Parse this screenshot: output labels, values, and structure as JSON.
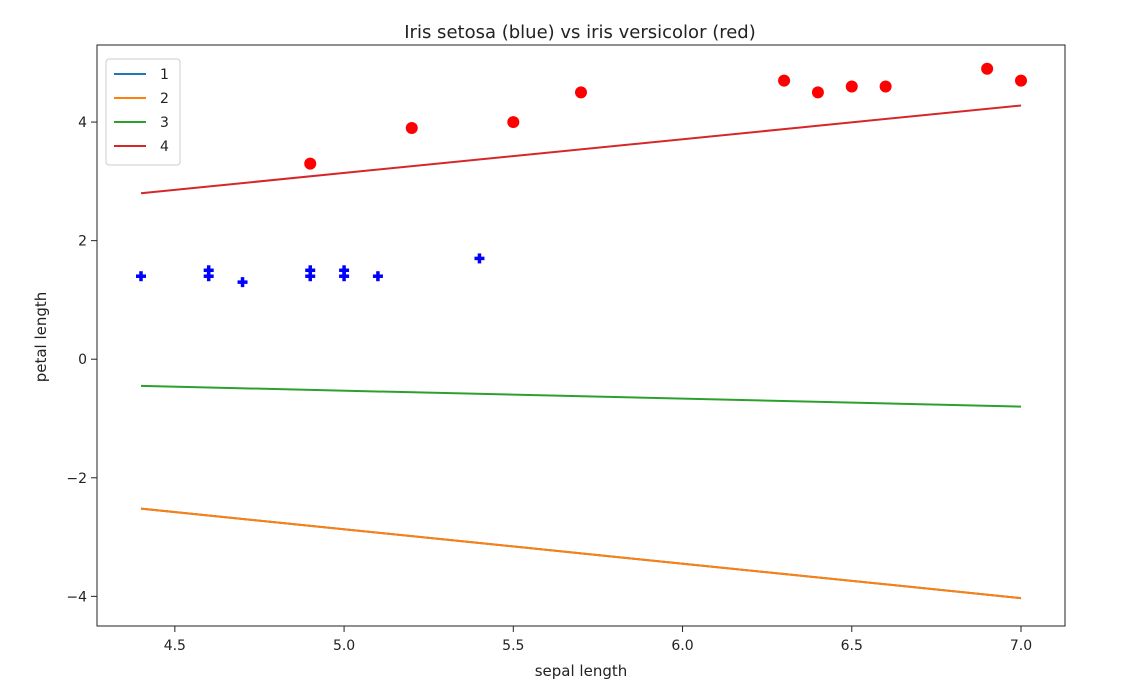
{
  "chart_data": {
    "type": "scatter",
    "title": "Iris setosa (blue) vs iris versicolor (red)",
    "xlabel": "sepal length",
    "ylabel": "petal length",
    "xlim": [
      4.27,
      7.13
    ],
    "ylim": [
      -4.5,
      5.3
    ],
    "xticks": [
      4.5,
      5.0,
      5.5,
      6.0,
      6.5,
      7.0
    ],
    "xtick_labels": [
      "4.5",
      "5.0",
      "5.5",
      "6.0",
      "6.5",
      "7.0"
    ],
    "yticks": [
      -4,
      -2,
      0,
      2,
      4
    ],
    "ytick_labels": [
      "−4",
      "−2",
      "0",
      "2",
      "4"
    ],
    "grid": false,
    "legend_position": "top-left",
    "lines": [
      {
        "name": "1",
        "color": "#1f77b4",
        "x": [
          4.4,
          7.0
        ],
        "y": [
          -2.52,
          -4.03
        ]
      },
      {
        "name": "2",
        "color": "#ff7f0e",
        "x": [
          4.4,
          7.0
        ],
        "y": [
          -2.52,
          -4.03
        ]
      },
      {
        "name": "3",
        "color": "#2ca02c",
        "x": [
          4.4,
          7.0
        ],
        "y": [
          -0.45,
          -0.8
        ]
      },
      {
        "name": "4",
        "color": "#d62728",
        "x": [
          4.4,
          7.0
        ],
        "y": [
          2.8,
          4.28
        ]
      }
    ],
    "scatter": [
      {
        "color": "#0000ff",
        "marker": "plus",
        "points": [
          [
            4.4,
            1.4
          ],
          [
            4.6,
            1.4
          ],
          [
            4.6,
            1.5
          ],
          [
            4.7,
            1.3
          ],
          [
            4.9,
            1.4
          ],
          [
            4.9,
            1.5
          ],
          [
            5.0,
            1.4
          ],
          [
            5.0,
            1.5
          ],
          [
            5.1,
            1.4
          ],
          [
            5.4,
            1.7
          ]
        ]
      },
      {
        "color": "#ff0000",
        "marker": "circle",
        "points": [
          [
            4.9,
            3.3
          ],
          [
            5.2,
            3.9
          ],
          [
            5.5,
            4.0
          ],
          [
            5.7,
            4.5
          ],
          [
            6.3,
            4.7
          ],
          [
            6.4,
            4.5
          ],
          [
            6.5,
            4.6
          ],
          [
            6.6,
            4.6
          ],
          [
            6.9,
            4.9
          ],
          [
            7.0,
            4.7
          ]
        ]
      }
    ]
  }
}
